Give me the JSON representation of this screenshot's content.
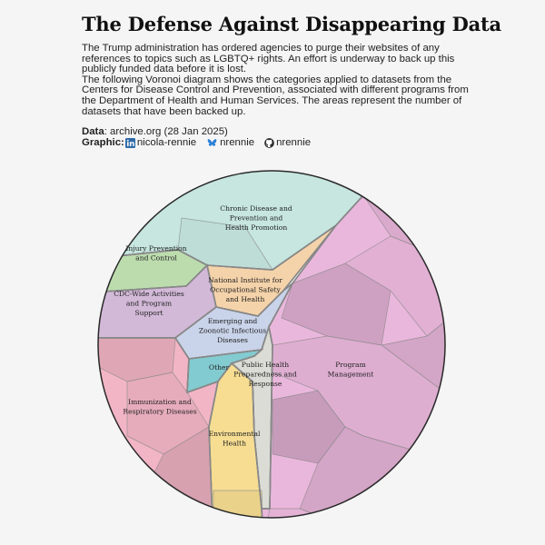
{
  "header": {
    "title": "The Defense Against Disappearing Data",
    "description": [
      "The Trump administration has ordered agencies to purge their websites of any references to topics such as LGBTQ+ rights. An effort is underway to back up this publicly funded data before it is lost.",
      "The following Voronoi diagram shows the categories applied to datasets from the Centers for Disease Control and Prevention, associated with different programs from the Department of Health and Human Services. The areas represent the number of datasets that have been backed up."
    ],
    "data_label": "Data",
    "data_source": ": archive.org (28 Jan 2025)",
    "graphic_label": "Graphic:",
    "handles": [
      {
        "icon": "linkedin-icon",
        "text": "nicola-rennie"
      },
      {
        "icon": "bluesky-icon",
        "text": "nrennie"
      },
      {
        "icon": "github-icon",
        "text": "nrennie"
      }
    ]
  },
  "colors": {
    "linkedin": "#2e6aa8",
    "bluesky": "#2b80d6",
    "github": "#2b2b2b",
    "cell_border": "#888888"
  },
  "chart_data": {
    "type": "voronoi-treemap",
    "title": "",
    "categories": [
      {
        "name": "Chronic Disease and Prevention and Health Promotion",
        "label_lines": [
          "Chronic Disease and",
          "Prevention and",
          "Health Promotion"
        ],
        "color": "#c6e6df"
      },
      {
        "name": "Injury Prevention and Control",
        "label_lines": [
          "Injury Prevention",
          "and Control"
        ],
        "color": "#bcdcae"
      },
      {
        "name": "CDC-Wide Activities and Program Support",
        "label_lines": [
          "CDC-Wide Activities",
          "and Program",
          "Support"
        ],
        "color": "#d2b9d8"
      },
      {
        "name": "National Institute for Occupational Safety and Health",
        "label_lines": [
          "National Institute for",
          "Occupational Safety",
          "and Health"
        ],
        "color": "#f5d3aa"
      },
      {
        "name": "Emerging and Zoonotic Infectious Diseases",
        "label_lines": [
          "Emerging and",
          "Zoonotic Infectious",
          "Diseases"
        ],
        "color": "#c9d3e9"
      },
      {
        "name": "Other",
        "label_lines": [
          "Other"
        ],
        "color": "#82cbd1"
      },
      {
        "name": "Public Health Preparedness and Response",
        "label_lines": [
          "Public Health",
          "Preparedness and",
          "Response"
        ],
        "color": "#dcdcd6"
      },
      {
        "name": "Immunization and Respiratory Diseases",
        "label_lines": [
          "Immunization and",
          "Respiratory Diseases"
        ],
        "color": "#f2b5c5"
      },
      {
        "name": "Environmental Health",
        "label_lines": [
          "Environmental",
          "Health"
        ],
        "color": "#f6dd92"
      },
      {
        "name": "Program Management",
        "label_lines": [
          "Program",
          "Management"
        ],
        "color": "#eab7dc"
      }
    ]
  }
}
